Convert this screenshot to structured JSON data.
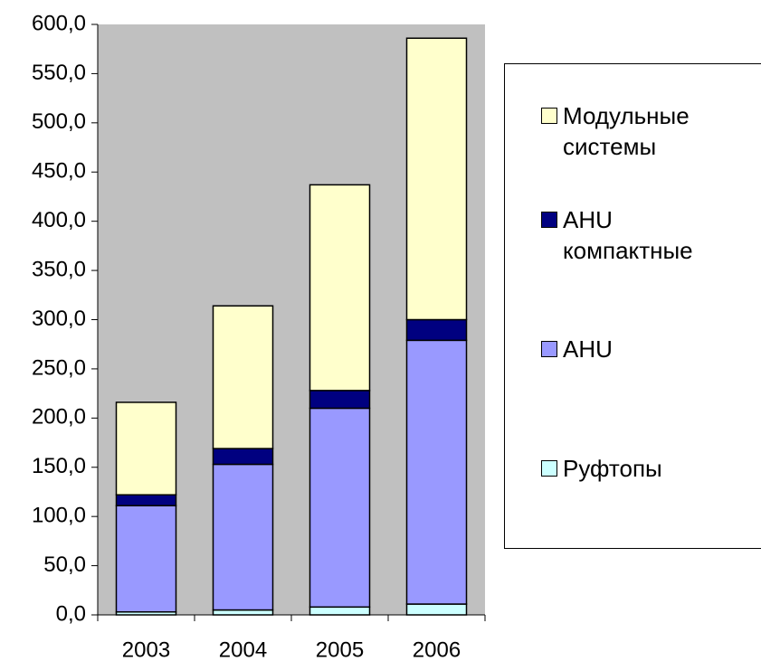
{
  "chart_data": {
    "type": "stacked_bar",
    "categories": [
      "2003",
      "2004",
      "2005",
      "2006"
    ],
    "series": [
      {
        "name": "Руфтопы",
        "color": "#ccffff",
        "values": [
          3,
          5,
          8,
          11
        ]
      },
      {
        "name": "AHU",
        "color": "#9999ff",
        "values": [
          108,
          148,
          202,
          268
        ]
      },
      {
        "name": "AHU компактные",
        "color": "#000080",
        "values": [
          11,
          16,
          18,
          21
        ]
      },
      {
        "name": "Модульные системы",
        "color": "#ffffcc",
        "values": [
          94,
          145,
          209,
          286
        ]
      }
    ],
    "ylim": [
      0,
      600
    ],
    "yticks": [
      {
        "value": 0,
        "label": "0,0"
      },
      {
        "value": 50,
        "label": "50,0"
      },
      {
        "value": 100,
        "label": "100,0"
      },
      {
        "value": 150,
        "label": "150,0"
      },
      {
        "value": 200,
        "label": "200,0"
      },
      {
        "value": 250,
        "label": "250,0"
      },
      {
        "value": 300,
        "label": "300,0"
      },
      {
        "value": 350,
        "label": "350,0"
      },
      {
        "value": 400,
        "label": "400,0"
      },
      {
        "value": 450,
        "label": "450,0"
      },
      {
        "value": 500,
        "label": "500,0"
      },
      {
        "value": 550,
        "label": "550,0"
      },
      {
        "value": 600,
        "label": "600,0"
      }
    ],
    "legend": "right"
  }
}
